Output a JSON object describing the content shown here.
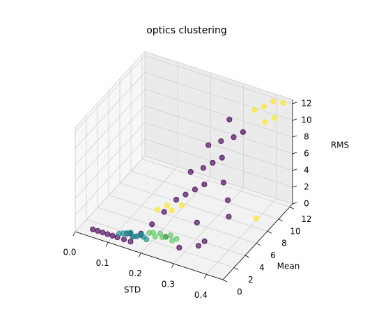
{
  "chart_data": {
    "type": "scatter3d",
    "title": "optics clustering",
    "xlabel": "STD",
    "ylabel": "Mean",
    "zlabel": "RMS",
    "xlim": [
      0,
      0.45
    ],
    "ylim": [
      0,
      12.5
    ],
    "zlim": [
      0,
      12.5
    ],
    "xticks": [
      {
        "value": 0,
        "label": "0.0"
      },
      0.1,
      0.2,
      0.3,
      0.4
    ],
    "yticks": [
      0,
      2,
      4,
      6,
      8,
      10,
      12
    ],
    "zticks": [
      0,
      2,
      4,
      6,
      8,
      10,
      12
    ],
    "grid": true,
    "series": [
      {
        "color": "#440154",
        "x": [
          0.045,
          0.06,
          0.075,
          0.09,
          0.105,
          0.12,
          0.14,
          0.16,
          0.2,
          0.22,
          0.24,
          0.26,
          0.28,
          0.3,
          0.25,
          0.28,
          0.3,
          0.32,
          0.27,
          0.3,
          0.33,
          0.35,
          0.3,
          0.35,
          0.38,
          0.32,
          0.36,
          0.4,
          0.25,
          0.3,
          0.35,
          0.15,
          0.18
        ],
        "y": [
          0.5,
          0.5,
          0.5,
          0.5,
          0.5,
          0.5,
          0.5,
          0.5,
          2,
          3,
          4,
          4.5,
          5,
          5.5,
          6,
          6.5,
          7,
          7.5,
          8,
          8.5,
          9,
          9.5,
          10,
          6,
          5,
          3,
          2,
          4,
          1.5,
          1,
          1.5,
          1,
          1.2
        ],
        "z": [
          0.5,
          0.5,
          0.5,
          0.5,
          0.5,
          0.5,
          0.5,
          0.5,
          2,
          3,
          4,
          4.5,
          5,
          5.5,
          6,
          6.5,
          7,
          7.5,
          8,
          8.5,
          9,
          9.5,
          10,
          6,
          5,
          3,
          2,
          4,
          1.5,
          1.2,
          1.7,
          1,
          1.2
        ]
      },
      {
        "color": "#3b528b",
        "x": [
          0.14,
          0.15,
          0.16,
          0.17,
          0.18
        ],
        "y": [
          1,
          1.1,
          0.9,
          1,
          1.2
        ],
        "z": [
          0.8,
          0.9,
          0.8,
          0.9,
          1
        ]
      },
      {
        "color": "#21918c",
        "x": [
          0.12,
          0.13,
          0.14,
          0.15,
          0.16,
          0.17,
          0.18,
          0.19,
          0.2
        ],
        "y": [
          0.8,
          0.9,
          1,
          1.1,
          0.9,
          1,
          1.2,
          1.1,
          1
        ],
        "z": [
          0.7,
          0.8,
          0.9,
          1,
          0.8,
          0.9,
          1.1,
          1,
          0.9
        ]
      },
      {
        "color": "#5ec962",
        "x": [
          0.2,
          0.21,
          0.22,
          0.23,
          0.24,
          0.25,
          0.26,
          0.27,
          0.28
        ],
        "y": [
          1.5,
          1.6,
          1.4,
          1.7,
          1.5,
          1.6,
          1.8,
          1.5,
          1.7
        ],
        "z": [
          1.3,
          1.4,
          1.2,
          1.5,
          1.3,
          1.4,
          1.6,
          1.3,
          1.5
        ]
      },
      {
        "color": "#fde725",
        "x": [
          0.38,
          0.4,
          0.42,
          0.36,
          0.4,
          0.43,
          0.2,
          0.22,
          0.24,
          0.26,
          0.45
        ],
        "y": [
          11.5,
          12,
          11,
          11,
          10.5,
          12,
          3,
          3.5,
          3.2,
          3.8,
          6
        ],
        "z": [
          11.5,
          12,
          11,
          11.2,
          10.6,
          12.2,
          3,
          3.4,
          3.3,
          3.7,
          3
        ]
      }
    ]
  }
}
